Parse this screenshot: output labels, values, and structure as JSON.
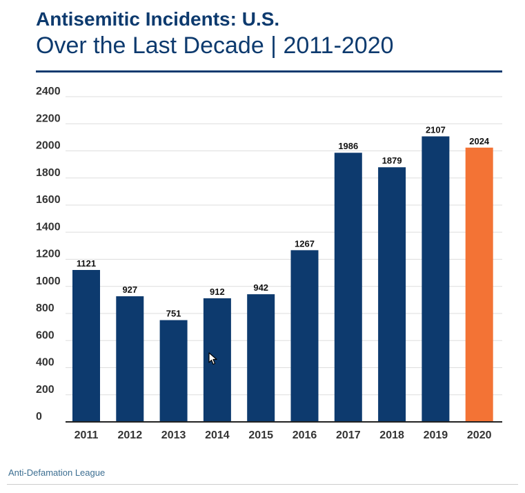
{
  "header": {
    "title": "Antisemitic Incidents: U.S.",
    "subtitle": "Over the Last Decade | 2011-2020"
  },
  "footer": {
    "source": "Anti-Defamation League"
  },
  "colors": {
    "primary": "#0d3a6e",
    "highlight": "#f37335",
    "grid": "#dddddd",
    "axis": "#222222",
    "source_text": "#3c6e91"
  },
  "chart_data": {
    "type": "bar",
    "title": "Antisemitic Incidents: U.S.",
    "subtitle": "Over the Last Decade | 2011-2020",
    "xlabel": "",
    "ylabel": "",
    "categories": [
      "2011",
      "2012",
      "2013",
      "2014",
      "2015",
      "2016",
      "2017",
      "2018",
      "2019",
      "2020"
    ],
    "values": [
      1121,
      927,
      751,
      912,
      942,
      1267,
      1986,
      1879,
      2107,
      2024
    ],
    "highlight_category": "2020",
    "ylim": [
      0,
      2400
    ],
    "yticks": [
      0,
      200,
      400,
      600,
      800,
      1000,
      1200,
      1400,
      1600,
      1800,
      2000,
      2200,
      2400
    ],
    "grid": true,
    "data_labels": true,
    "legend": "none"
  }
}
